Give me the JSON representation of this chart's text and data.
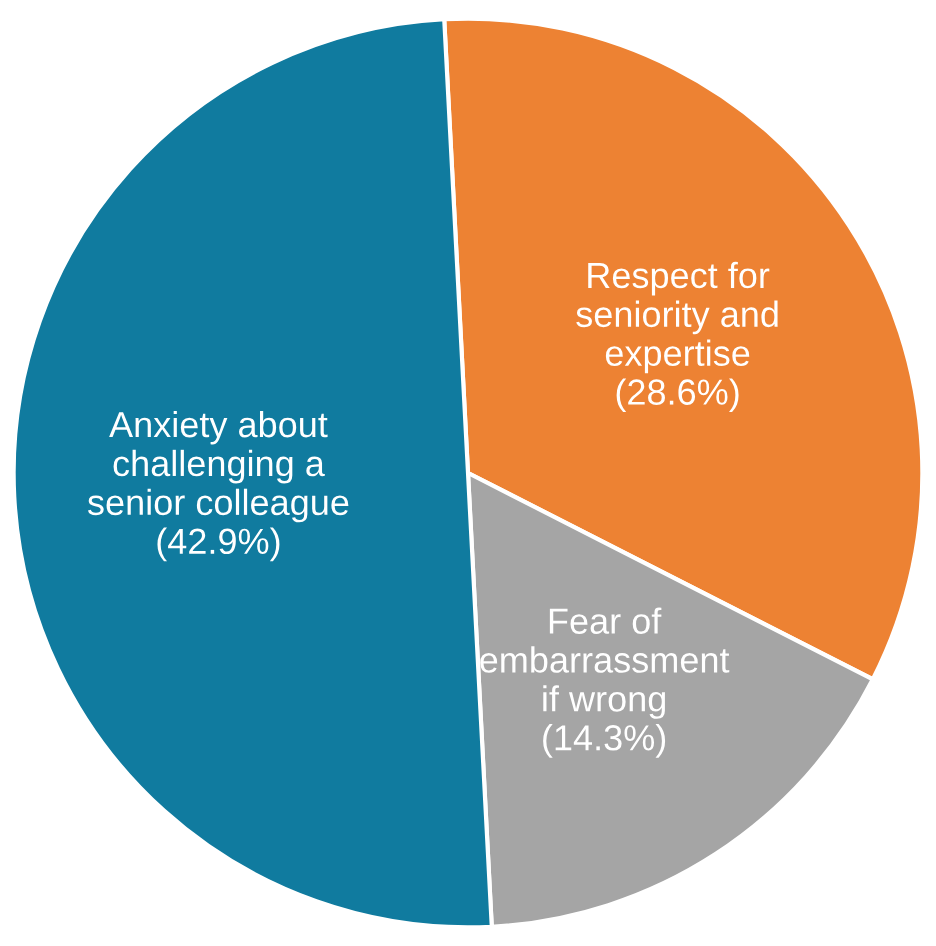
{
  "chart_data": {
    "type": "pie",
    "categories": [
      "Respect for\nseniority and\nexpertise",
      "Fear of\nembarrassment\nif wrong",
      "Anxiety about\nchallenging a\nsenior colleague"
    ],
    "values": [
      28.6,
      14.3,
      42.9
    ],
    "value_labels": [
      "(28.6%)",
      "(14.3%)",
      "(42.9%)"
    ],
    "colors": [
      "#ed8233",
      "#a5a5a5",
      "#107b9f"
    ]
  }
}
